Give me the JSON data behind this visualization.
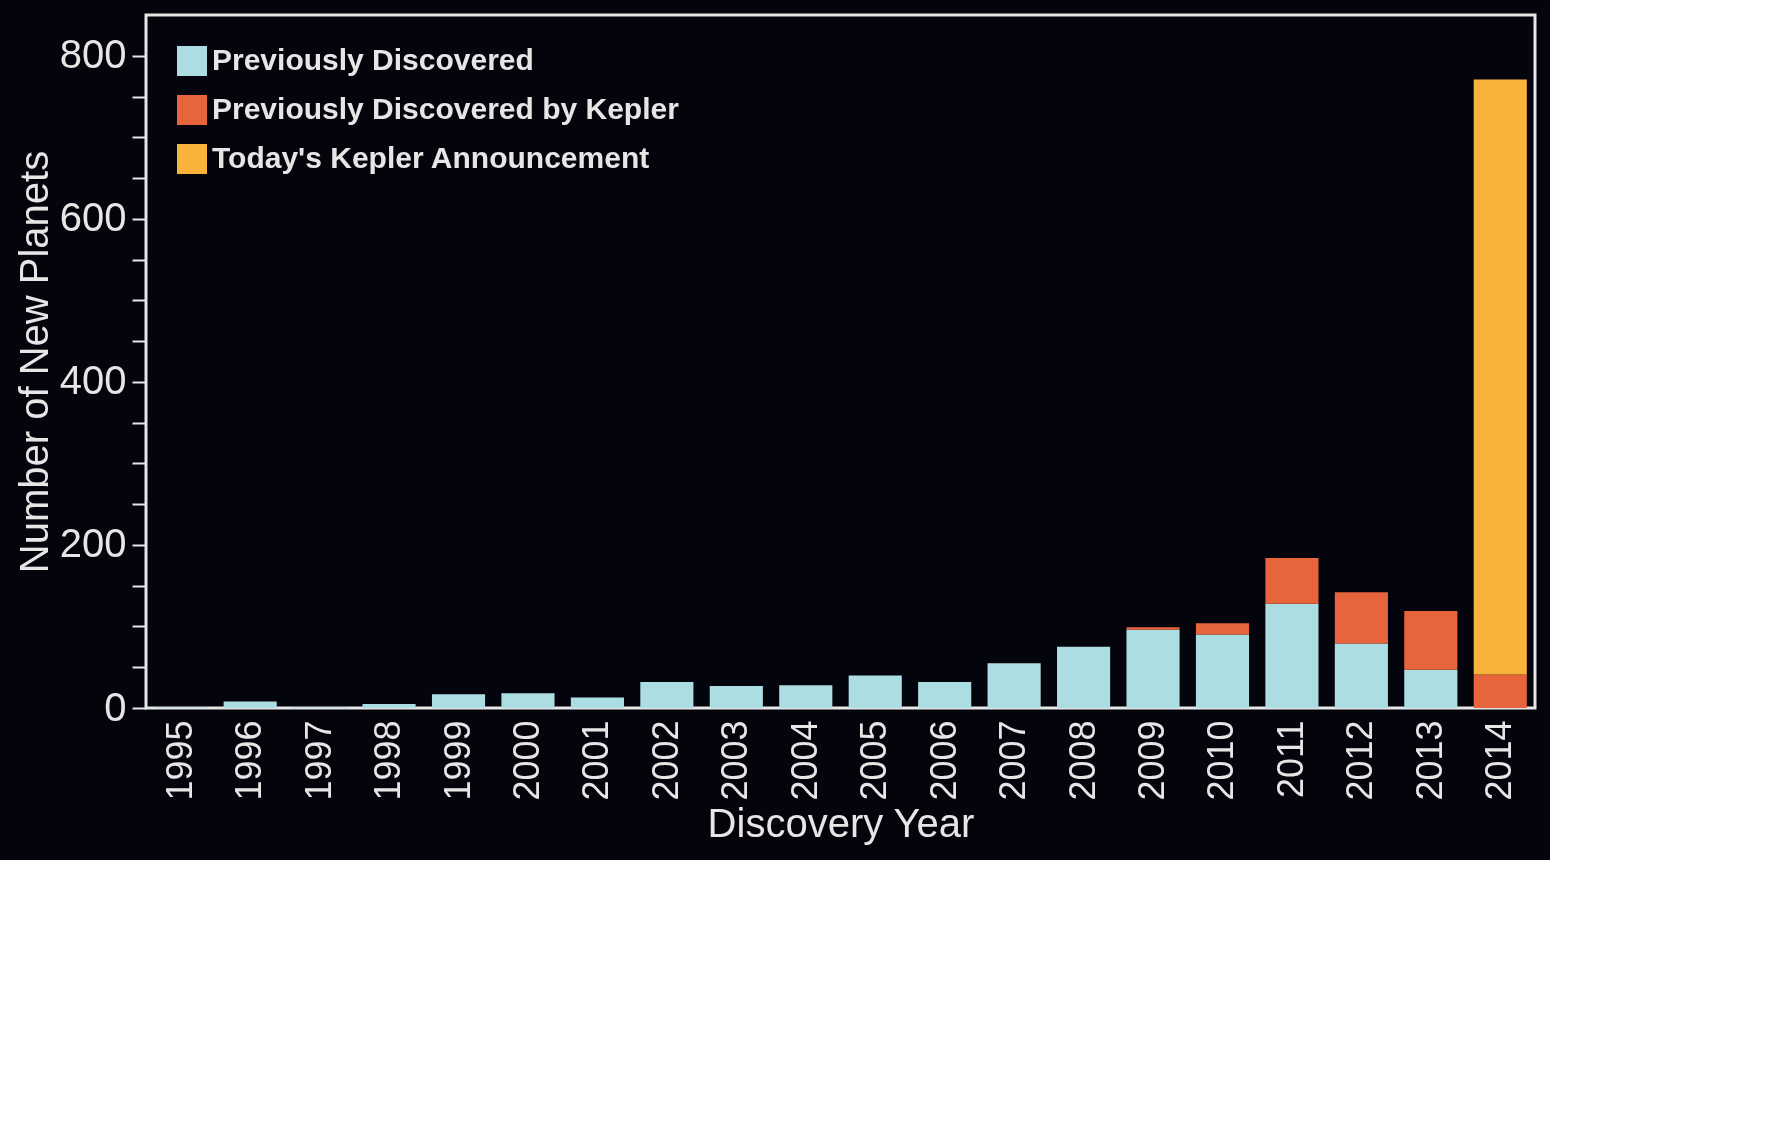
{
  "chart_data": {
    "type": "bar",
    "stacked": true,
    "xlabel": "Discovery Year",
    "ylabel": "Number of New Planets",
    "categories": [
      "1995",
      "1996",
      "1997",
      "1998",
      "1999",
      "2000",
      "2001",
      "2002",
      "2003",
      "2004",
      "2005",
      "2006",
      "2007",
      "2008",
      "2009",
      "2010",
      "2011",
      "2012",
      "2013",
      "2014"
    ],
    "series": [
      {
        "name": "Previously Discovered",
        "color": "#acdde3",
        "values": [
          1,
          8,
          1,
          5,
          17,
          18,
          13,
          32,
          27,
          28,
          40,
          32,
          55,
          75,
          96,
          90,
          128,
          79,
          47,
          0
        ]
      },
      {
        "name": "Previously Discovered by Kepler",
        "color": "#e8643c",
        "values": [
          0,
          0,
          0,
          0,
          0,
          0,
          0,
          0,
          0,
          0,
          0,
          0,
          0,
          0,
          3,
          14,
          56,
          63,
          72,
          41
        ]
      },
      {
        "name": "Today's Kepler Announcement",
        "color": "#f9b33a",
        "values": [
          0,
          0,
          0,
          0,
          0,
          0,
          0,
          0,
          0,
          0,
          0,
          0,
          0,
          0,
          0,
          0,
          0,
          0,
          0,
          730
        ]
      }
    ],
    "ylim": [
      0,
      850
    ],
    "yticks": [
      0,
      {
        "value": 50,
        "label": null
      },
      {
        "value": 100,
        "label": null
      },
      {
        "value": 150,
        "label": null
      },
      200,
      {
        "value": 250,
        "label": null
      },
      {
        "value": 300,
        "label": null
      },
      {
        "value": 350,
        "label": null
      },
      400,
      {
        "value": 450,
        "label": null
      },
      {
        "value": 500,
        "label": null
      },
      {
        "value": 550,
        "label": null
      },
      600,
      {
        "value": 650,
        "label": null
      },
      {
        "value": 700,
        "label": null
      },
      {
        "value": 750,
        "label": null
      },
      800
    ],
    "grid": false,
    "legend": "top left"
  }
}
